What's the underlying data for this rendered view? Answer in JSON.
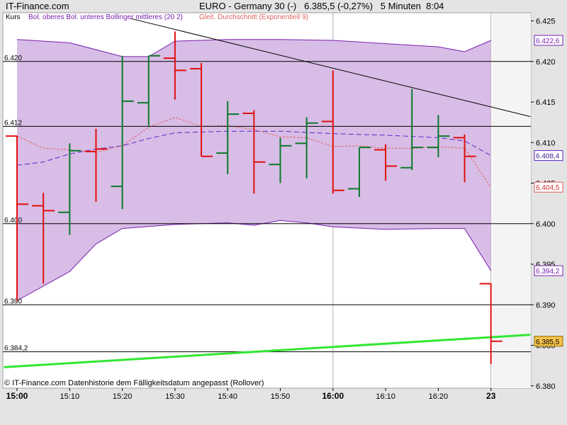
{
  "header": {
    "brand": "IT-Finance.com",
    "instrument": "EURO - Germany 30 (-)",
    "quote": "6.385,5 (-0,27%)",
    "interval": "5 Minuten",
    "time": "8:04"
  },
  "legend": {
    "kurs": "Kurs",
    "bollinger": "Bol. oberes Bol. unteres Bollinger mittleres (20 2)",
    "ema": "Gleit. Durchschnitt (Exponentiell 9)"
  },
  "footer": "© IT-Finance.com  Datenhistorie dem Fälligkeitsdatum angepasst (Rollover)",
  "colors": {
    "up": "#0a7a2a",
    "down": "#e01010",
    "band_fill": "#d8bde6",
    "band_line": "#7a1fb0",
    "middle": "#5a28c8",
    "ema": "#e06060",
    "trend": "#000000",
    "support": "#33e633",
    "plot_bg": "#ffffff"
  },
  "chart_data": {
    "type": "ohlc",
    "ylim": [
      6380,
      6426
    ],
    "y_ticks": [
      "6.380",
      "6.385",
      "6.390",
      "6.395",
      "6.400",
      "6.405",
      "6.410",
      "6.415",
      "6.420",
      "6.425"
    ],
    "x_labels": [
      {
        "t": 0,
        "label": "15:00",
        "major": true
      },
      {
        "t": 2,
        "label": "15:10",
        "major": false
      },
      {
        "t": 4,
        "label": "15:20",
        "major": false
      },
      {
        "t": 6,
        "label": "15:30",
        "major": false
      },
      {
        "t": 8,
        "label": "15:40",
        "major": false
      },
      {
        "t": 10,
        "label": "15:50",
        "major": false
      },
      {
        "t": 12,
        "label": "16:00",
        "major": true
      },
      {
        "t": 14,
        "label": "16:10",
        "major": false
      },
      {
        "t": 16,
        "label": "16:20",
        "major": false
      },
      {
        "t": 18,
        "label": "23",
        "major": true
      }
    ],
    "bars": [
      {
        "t": 0,
        "o": 6410.8,
        "h": 6410.8,
        "l": 6390.5,
        "c": 6402.4,
        "dir": "down"
      },
      {
        "t": 1,
        "o": 6402.2,
        "h": 6403.8,
        "l": 6392.6,
        "c": 6401.6,
        "dir": "down"
      },
      {
        "t": 2,
        "o": 6401.4,
        "h": 6409.9,
        "l": 6398.6,
        "c": 6409.0,
        "dir": "up"
      },
      {
        "t": 3,
        "o": 6408.9,
        "h": 6411.7,
        "l": 6402.7,
        "c": 6409.2,
        "dir": "down"
      },
      {
        "t": 4,
        "o": 6404.6,
        "h": 6420.7,
        "l": 6401.8,
        "c": 6415.1,
        "dir": "up"
      },
      {
        "t": 5,
        "o": 6414.9,
        "h": 6420.7,
        "l": 6412.0,
        "c": 6420.7,
        "dir": "up"
      },
      {
        "t": 6,
        "o": 6420.4,
        "h": 6423.7,
        "l": 6415.3,
        "c": 6418.9,
        "dir": "down"
      },
      {
        "t": 7,
        "o": 6419.1,
        "h": 6419.8,
        "l": 6408.3,
        "c": 6408.3,
        "dir": "down"
      },
      {
        "t": 8,
        "o": 6408.7,
        "h": 6415.1,
        "l": 6406.1,
        "c": 6413.5,
        "dir": "up"
      },
      {
        "t": 9,
        "o": 6413.6,
        "h": 6414.0,
        "l": 6403.7,
        "c": 6407.6,
        "dir": "down"
      },
      {
        "t": 10,
        "o": 6407.3,
        "h": 6410.6,
        "l": 6405.0,
        "c": 6409.6,
        "dir": "up"
      },
      {
        "t": 11,
        "o": 6409.9,
        "h": 6413.1,
        "l": 6405.6,
        "c": 6412.4,
        "dir": "up"
      },
      {
        "t": 12,
        "o": 6412.6,
        "h": 6418.9,
        "l": 6403.7,
        "c": 6404.1,
        "dir": "down"
      },
      {
        "t": 13,
        "o": 6404.3,
        "h": 6409.4,
        "l": 6403.3,
        "c": 6409.4,
        "dir": "up"
      },
      {
        "t": 14,
        "o": 6409.1,
        "h": 6409.8,
        "l": 6405.3,
        "c": 6407.1,
        "dir": "down"
      },
      {
        "t": 15,
        "o": 6406.9,
        "h": 6416.6,
        "l": 6406.6,
        "c": 6409.4,
        "dir": "up"
      },
      {
        "t": 16,
        "o": 6409.4,
        "h": 6413.4,
        "l": 6408.2,
        "c": 6410.8,
        "dir": "up"
      },
      {
        "t": 17,
        "o": 6410.6,
        "h": 6411.0,
        "l": 6405.1,
        "c": 6408.3,
        "dir": "down"
      },
      {
        "t": 18,
        "o": 6392.6,
        "h": 6392.6,
        "l": 6382.7,
        "c": 6385.5,
        "dir": "down"
      }
    ],
    "bollinger_upper": [
      [
        0,
        6422.7
      ],
      [
        2,
        6422.3
      ],
      [
        4,
        6420.6
      ],
      [
        5,
        6420.6
      ],
      [
        6,
        6422.5
      ],
      [
        8,
        6422.7
      ],
      [
        10,
        6422.7
      ],
      [
        12,
        6422.6
      ],
      [
        14,
        6422.2
      ],
      [
        16,
        6421.8
      ],
      [
        17,
        6421.2
      ],
      [
        18,
        6422.6
      ]
    ],
    "bollinger_lower": [
      [
        0,
        6390.5
      ],
      [
        1,
        6392.3
      ],
      [
        2,
        6394.1
      ],
      [
        3,
        6397.5
      ],
      [
        4,
        6399.4
      ],
      [
        6,
        6399.9
      ],
      [
        8,
        6400.1
      ],
      [
        9,
        6399.8
      ],
      [
        10,
        6400.4
      ],
      [
        11,
        6400.1
      ],
      [
        12,
        6399.6
      ],
      [
        14,
        6399.3
      ],
      [
        16,
        6399.4
      ],
      [
        17,
        6399.4
      ],
      [
        18,
        6394.2
      ]
    ],
    "bollinger_middle": [
      [
        0,
        6407.2
      ],
      [
        1,
        6407.6
      ],
      [
        2,
        6408.6
      ],
      [
        3,
        6409.2
      ],
      [
        4,
        6409.6
      ],
      [
        5,
        6410.5
      ],
      [
        6,
        6411.2
      ],
      [
        8,
        6411.4
      ],
      [
        10,
        6411.4
      ],
      [
        12,
        6411.1
      ],
      [
        14,
        6410.9
      ],
      [
        16,
        6410.6
      ],
      [
        17,
        6410.2
      ],
      [
        18,
        6408.4
      ]
    ],
    "ema": [
      [
        0,
        6410.8
      ],
      [
        1,
        6409.3
      ],
      [
        2,
        6409.1
      ],
      [
        3,
        6408.8
      ],
      [
        4,
        6409.6
      ],
      [
        5,
        6411.9
      ],
      [
        6,
        6413.1
      ],
      [
        7,
        6412.0
      ],
      [
        8,
        6412.1
      ],
      [
        9,
        6411.6
      ],
      [
        10,
        6410.7
      ],
      [
        11,
        6410.6
      ],
      [
        12,
        6409.5
      ],
      [
        13,
        6409.6
      ],
      [
        14,
        6409.3
      ],
      [
        15,
        6409.3
      ],
      [
        16,
        6409.5
      ],
      [
        17,
        6409.3
      ],
      [
        18,
        6404.5
      ]
    ],
    "trendline": [
      [
        4.3,
        6425.3
      ],
      [
        19.5,
        6413.2
      ]
    ],
    "supportline": [
      [
        -0.5,
        6382.3
      ],
      [
        19.5,
        6386.3
      ]
    ],
    "horizontal_lines": [
      {
        "value": 6420,
        "label": "6.420"
      },
      {
        "value": 6412,
        "label": "6.412"
      },
      {
        "value": 6400,
        "label": "6.400"
      },
      {
        "value": 6390,
        "label": "6.390"
      },
      {
        "value": 6384.2,
        "label": "6.384,2"
      }
    ],
    "value_tags": [
      {
        "value": 6422.6,
        "label": "6.422,6",
        "kind": "band"
      },
      {
        "value": 6408.4,
        "label": "6.408,4",
        "kind": "mid"
      },
      {
        "value": 6404.5,
        "label": "6.404,5",
        "kind": "ema"
      },
      {
        "value": 6394.2,
        "label": "6.394,2",
        "kind": "band"
      },
      {
        "value": 6385.5,
        "label": "6.385,5",
        "kind": "last"
      }
    ]
  }
}
